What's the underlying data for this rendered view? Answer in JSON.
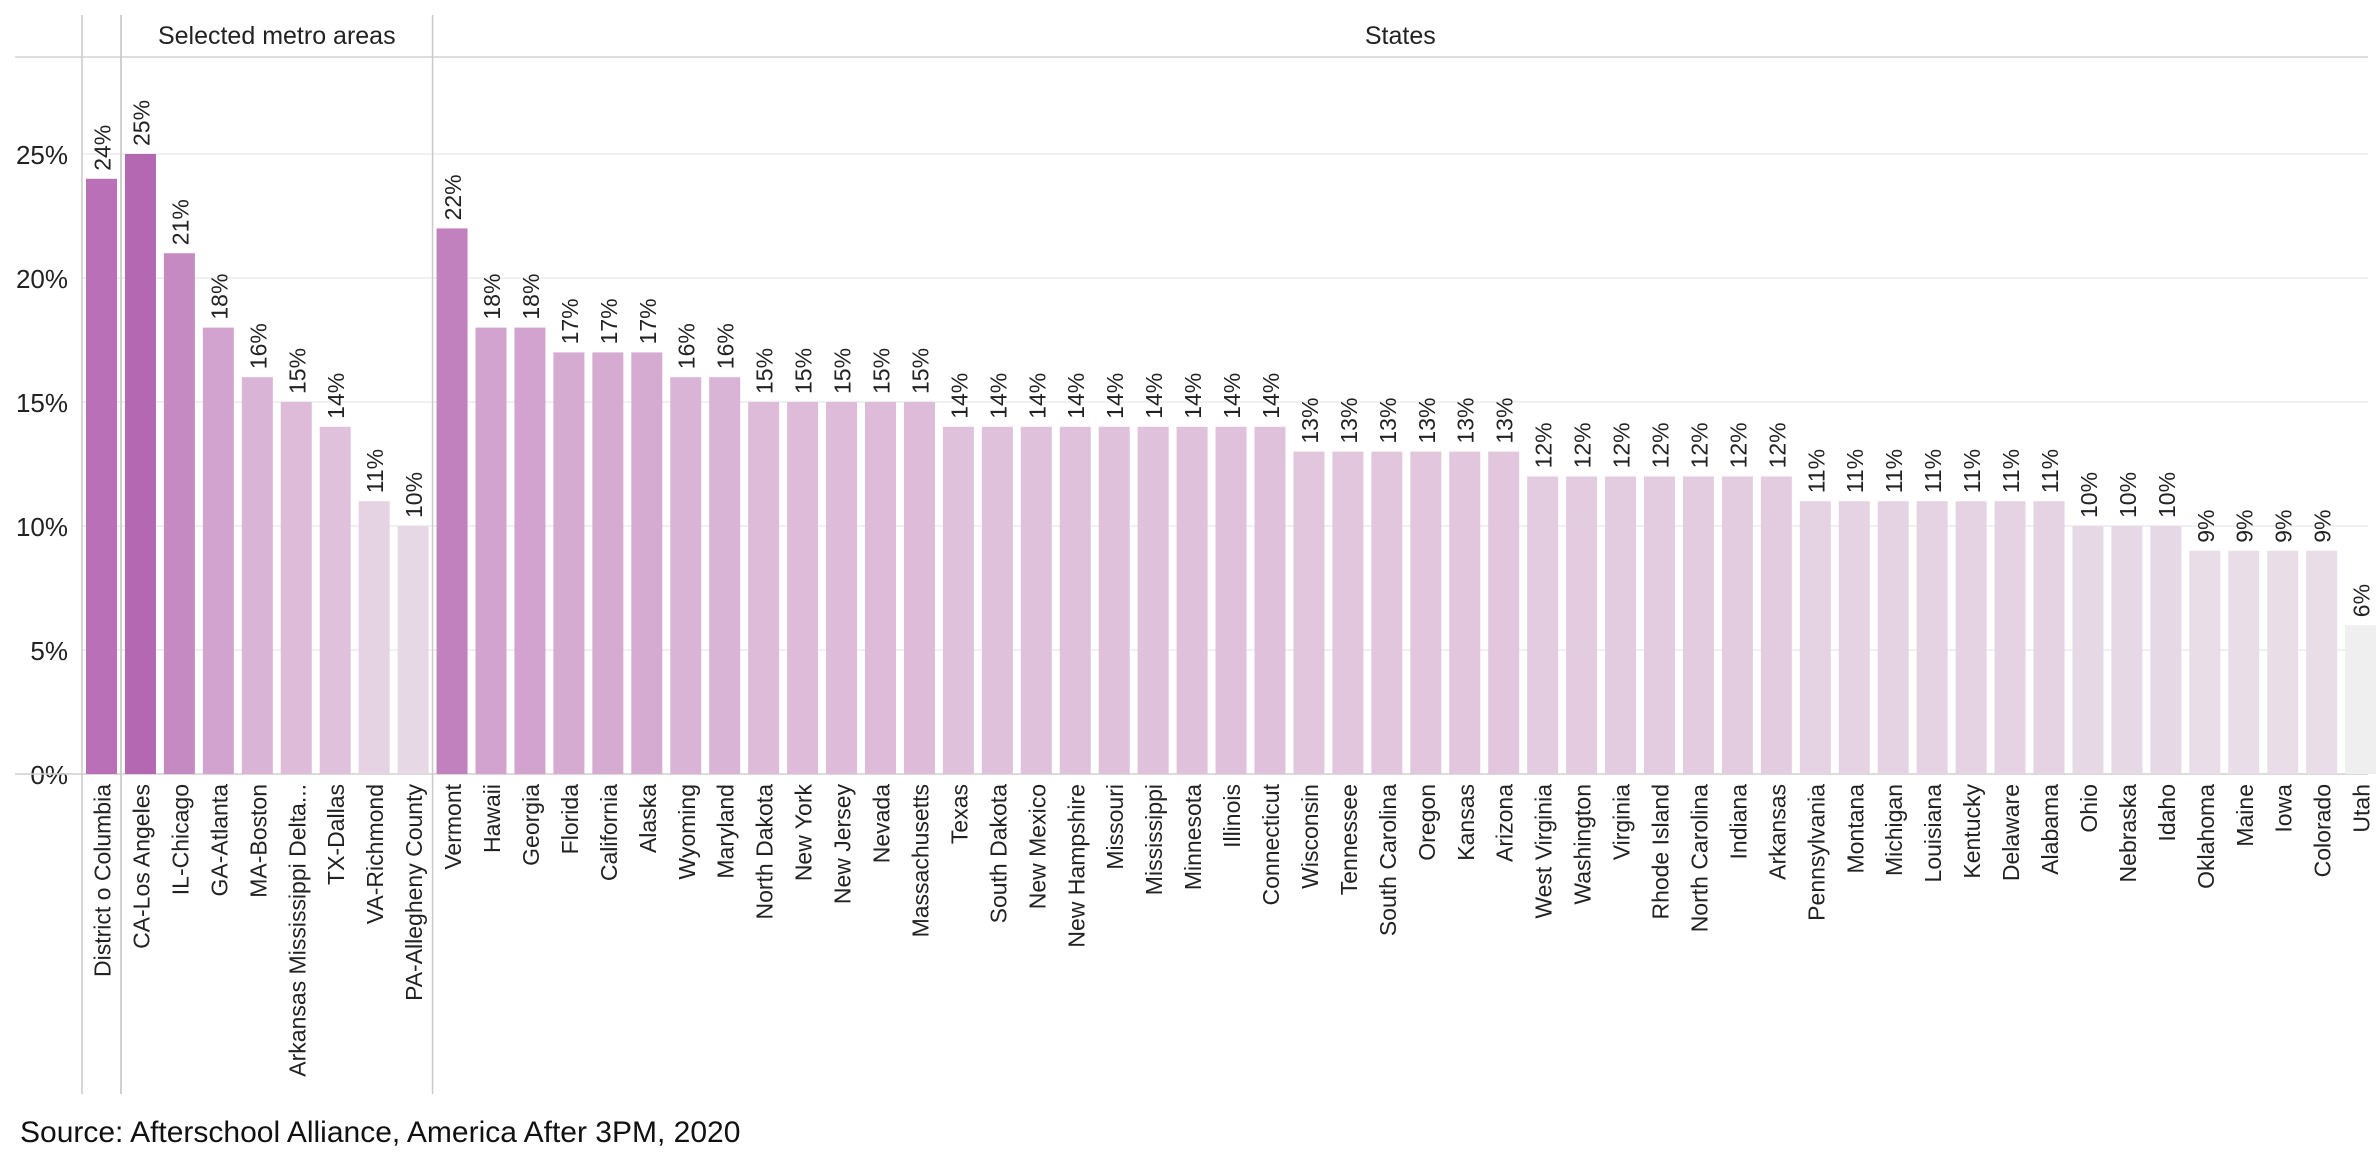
{
  "chart_data": {
    "type": "bar",
    "orientation": "vertical",
    "y_axis": {
      "min": 0,
      "max": 0.29,
      "ticks": [
        0,
        0.05,
        0.1,
        0.15,
        0.2,
        0.25
      ],
      "tick_labels": [
        "0%",
        "5%",
        "10%",
        "15%",
        "20%",
        "25%"
      ]
    },
    "grid": true,
    "value_labels": "rotated, above bars",
    "color_scale": {
      "low": "#efefef",
      "mid": "#dcb8d8",
      "high": "#b568b2",
      "min_value": 0.06,
      "max_value": 0.25
    },
    "groups": [
      {
        "label": "",
        "categories": [
          "District o Columbia"
        ],
        "values": [
          0.24
        ],
        "value_labels": [
          "24%"
        ]
      },
      {
        "label": "Selected metro areas",
        "categories": [
          "CA-Los Angeles",
          "IL-Chicago",
          "GA-Atlanta",
          "MA-Boston",
          "Arkansas Mississippi Delta...",
          "TX-Dallas",
          "VA-Richmond",
          "PA-Allegheny County"
        ],
        "values": [
          0.25,
          0.21,
          0.18,
          0.16,
          0.15,
          0.14,
          0.11,
          0.1
        ],
        "value_labels": [
          "25%",
          "21%",
          "18%",
          "16%",
          "15%",
          "14%",
          "11%",
          "10%"
        ]
      },
      {
        "label": "States",
        "categories": [
          "Vermont",
          "Hawaii",
          "Georgia",
          "Florida",
          "California",
          "Alaska",
          "Wyoming",
          "Maryland",
          "North Dakota",
          "New York",
          "New Jersey",
          "Nevada",
          "Massachusetts",
          "Texas",
          "South Dakota",
          "New Mexico",
          "New Hampshire",
          "Missouri",
          "Mississippi",
          "Minnesota",
          "Illinois",
          "Connecticut",
          "Wisconsin",
          "Tennessee",
          "South Carolina",
          "Oregon",
          "Kansas",
          "Arizona",
          "West Virginia",
          "Washington",
          "Virginia",
          "Rhode Island",
          "North Carolina",
          "Indiana",
          "Arkansas",
          "Pennsylvania",
          "Montana",
          "Michigan",
          "Louisiana",
          "Kentucky",
          "Delaware",
          "Alabama",
          "Ohio",
          "Nebraska",
          "Idaho",
          "Oklahoma",
          "Maine",
          "Iowa",
          "Colorado",
          "Utah"
        ],
        "values": [
          0.22,
          0.18,
          0.18,
          0.17,
          0.17,
          0.17,
          0.16,
          0.16,
          0.15,
          0.15,
          0.15,
          0.15,
          0.15,
          0.14,
          0.14,
          0.14,
          0.14,
          0.14,
          0.14,
          0.14,
          0.14,
          0.14,
          0.13,
          0.13,
          0.13,
          0.13,
          0.13,
          0.13,
          0.12,
          0.12,
          0.12,
          0.12,
          0.12,
          0.12,
          0.12,
          0.11,
          0.11,
          0.11,
          0.11,
          0.11,
          0.11,
          0.11,
          0.1,
          0.1,
          0.1,
          0.09,
          0.09,
          0.09,
          0.09,
          0.06
        ],
        "value_labels": [
          "22%",
          "18%",
          "18%",
          "17%",
          "17%",
          "17%",
          "16%",
          "16%",
          "15%",
          "15%",
          "15%",
          "15%",
          "15%",
          "14%",
          "14%",
          "14%",
          "14%",
          "14%",
          "14%",
          "14%",
          "14%",
          "14%",
          "13%",
          "13%",
          "13%",
          "13%",
          "13%",
          "13%",
          "12%",
          "12%",
          "12%",
          "12%",
          "12%",
          "12%",
          "12%",
          "11%",
          "11%",
          "11%",
          "11%",
          "11%",
          "11%",
          "11%",
          "10%",
          "10%",
          "10%",
          "9%",
          "9%",
          "9%",
          "9%",
          "6%"
        ]
      }
    ]
  },
  "footer": {
    "source": "Source: Afterschool Alliance, America After 3PM, 2020"
  }
}
